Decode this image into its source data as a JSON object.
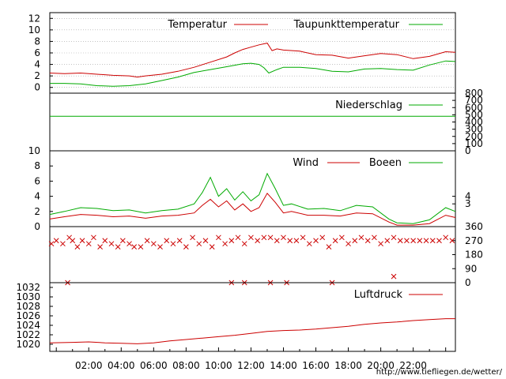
{
  "credit": "http://www.tiefliegen.de/wetter/",
  "colors": {
    "red": "#cc0000",
    "green": "#00aa00",
    "grid": "#a0a0a0"
  },
  "chart_data": [
    {
      "panel": "temperature",
      "type": "line",
      "x_labels": [
        "02:00",
        "04:00",
        "06:00",
        "08:00",
        "10:00",
        "12:00",
        "14:00",
        "16:00",
        "18:00",
        "20:00",
        "22:00"
      ],
      "x_range_hours": [
        -0.4,
        24.6
      ],
      "ylim": [
        -1,
        13
      ],
      "yticks": [
        0,
        2,
        4,
        6,
        8,
        10,
        12
      ],
      "grid": true,
      "legend_position": "top-right",
      "series": [
        {
          "name": "Temperatur",
          "color": "#cc0000",
          "x": [
            -0.4,
            0.5,
            1.5,
            2.5,
            3.5,
            4.5,
            5.0,
            5.5,
            6.5,
            7.5,
            8.5,
            9.5,
            10.5,
            11.0,
            11.5,
            12.0,
            12.5,
            13.0,
            13.3,
            13.6,
            14.0,
            15.0,
            16.0,
            17.0,
            18.0,
            19.0,
            20.0,
            21.0,
            22.0,
            23.0,
            24.0,
            24.6
          ],
          "y": [
            2.5,
            2.4,
            2.5,
            2.3,
            2.1,
            2.0,
            1.8,
            2.0,
            2.3,
            2.8,
            3.5,
            4.4,
            5.3,
            6.0,
            6.6,
            7.0,
            7.4,
            7.7,
            6.4,
            6.7,
            6.5,
            6.3,
            5.7,
            5.6,
            5.1,
            5.5,
            5.9,
            5.7,
            5.0,
            5.4,
            6.2,
            6.1
          ]
        },
        {
          "name": "Taupunkttemperatur",
          "color": "#00aa00",
          "x": [
            -0.4,
            0.5,
            1.5,
            2.5,
            3.5,
            4.5,
            5.5,
            6.5,
            7.5,
            8.5,
            9.5,
            10.5,
            11.5,
            12.0,
            12.5,
            12.8,
            13.1,
            13.6,
            14.0,
            15.0,
            16.0,
            17.0,
            18.0,
            19.0,
            20.0,
            21.0,
            22.0,
            23.0,
            24.0,
            24.6
          ],
          "y": [
            0.7,
            0.7,
            0.6,
            0.3,
            0.2,
            0.3,
            0.6,
            1.2,
            1.8,
            2.6,
            3.1,
            3.6,
            4.1,
            4.2,
            4.0,
            3.4,
            2.5,
            3.1,
            3.5,
            3.5,
            3.3,
            2.8,
            2.7,
            3.2,
            3.3,
            3.1,
            3.0,
            3.9,
            4.6,
            4.5
          ]
        }
      ]
    },
    {
      "panel": "precipitation",
      "type": "line",
      "ylim": [
        0,
        800
      ],
      "yticks": [
        0,
        100,
        200,
        300,
        400,
        500,
        600,
        700,
        800
      ],
      "series": [
        {
          "name": "Niederschlag",
          "color": "#00aa00",
          "x": [
            -0.4,
            24.6
          ],
          "y": [
            480,
            480
          ]
        }
      ]
    },
    {
      "panel": "wind",
      "type": "line",
      "ylim": [
        0,
        10
      ],
      "yticks_left": [
        0,
        2,
        4,
        6,
        8,
        10
      ],
      "yticks_right": [
        3,
        4
      ],
      "series": [
        {
          "name": "Wind",
          "color": "#cc0000",
          "x": [
            -0.4,
            0.5,
            1.5,
            2.5,
            3.5,
            4.5,
            5.5,
            6.5,
            7.5,
            8.5,
            9.0,
            9.5,
            10.0,
            10.5,
            11.0,
            11.5,
            12.0,
            12.5,
            13.0,
            13.5,
            14.0,
            14.5,
            15.5,
            16.5,
            17.5,
            18.5,
            19.5,
            20.5,
            21.0,
            22.0,
            23.0,
            24.0,
            24.6
          ],
          "y": [
            1.0,
            1.3,
            1.6,
            1.5,
            1.3,
            1.4,
            1.1,
            1.4,
            1.5,
            1.8,
            2.8,
            3.6,
            2.6,
            3.4,
            2.2,
            3.0,
            2.0,
            2.5,
            4.4,
            3.2,
            1.8,
            2.0,
            1.5,
            1.5,
            1.4,
            1.8,
            1.7,
            0.6,
            0.2,
            0.2,
            0.4,
            1.5,
            1.2
          ]
        },
        {
          "name": "Boeen",
          "color": "#00aa00",
          "x": [
            -0.4,
            0.5,
            1.5,
            2.5,
            3.5,
            4.5,
            5.5,
            6.5,
            7.5,
            8.5,
            9.0,
            9.5,
            10.0,
            10.5,
            11.0,
            11.5,
            12.0,
            12.5,
            13.0,
            13.5,
            14.0,
            14.5,
            15.5,
            16.5,
            17.5,
            18.5,
            19.5,
            20.5,
            21.0,
            22.0,
            23.0,
            24.0,
            24.6
          ],
          "y": [
            1.6,
            2.0,
            2.5,
            2.4,
            2.1,
            2.2,
            1.8,
            2.1,
            2.3,
            3.0,
            4.5,
            6.5,
            4.0,
            5.0,
            3.5,
            4.6,
            3.4,
            4.2,
            7.0,
            5.0,
            2.8,
            3.0,
            2.3,
            2.4,
            2.1,
            2.8,
            2.6,
            1.0,
            0.5,
            0.4,
            0.9,
            2.5,
            2.0
          ]
        }
      ]
    },
    {
      "panel": "wind_direction",
      "type": "scatter",
      "ylim": [
        0,
        360
      ],
      "yticks": [
        0,
        90,
        180,
        270,
        360
      ],
      "marker": "x",
      "series": [
        {
          "name": "",
          "color": "#cc0000",
          "x": [
            -0.3,
            0.0,
            0.4,
            0.8,
            1.0,
            1.3,
            1.6,
            2.0,
            2.3,
            2.7,
            3.0,
            3.4,
            3.8,
            4.1,
            4.5,
            4.8,
            5.2,
            5.6,
            6.0,
            6.4,
            6.8,
            7.2,
            7.6,
            8.0,
            8.4,
            8.8,
            9.2,
            9.6,
            10.0,
            10.4,
            10.8,
            11.2,
            11.6,
            12.0,
            12.4,
            12.8,
            13.2,
            13.6,
            14.0,
            14.4,
            14.8,
            15.2,
            15.6,
            16.0,
            16.4,
            16.8,
            17.2,
            17.6,
            18.0,
            18.4,
            18.8,
            19.2,
            19.6,
            20.0,
            20.4,
            20.8,
            21.2,
            21.6,
            22.0,
            22.4,
            22.8,
            23.2,
            23.6,
            24.0,
            24.4,
            0.7,
            10.8,
            11.6,
            13.2,
            14.2,
            17.0,
            20.8
          ],
          "y": [
            250,
            270,
            250,
            290,
            270,
            230,
            270,
            250,
            290,
            230,
            270,
            250,
            230,
            270,
            250,
            230,
            230,
            270,
            250,
            230,
            270,
            250,
            270,
            230,
            290,
            250,
            270,
            230,
            290,
            250,
            270,
            290,
            250,
            290,
            270,
            290,
            290,
            270,
            290,
            270,
            270,
            290,
            250,
            270,
            290,
            230,
            270,
            290,
            250,
            270,
            290,
            270,
            290,
            250,
            270,
            290,
            270,
            270,
            270,
            270,
            270,
            270,
            270,
            290,
            270,
            0,
            0,
            0,
            0,
            0,
            0,
            40
          ]
        }
      ]
    },
    {
      "panel": "pressure",
      "type": "line",
      "ylim": [
        1018.5,
        1033
      ],
      "yticks": [
        1020,
        1022,
        1024,
        1026,
        1028,
        1030,
        1032
      ],
      "series": [
        {
          "name": "Luftdruck",
          "color": "#cc0000",
          "x": [
            -0.4,
            1.0,
            2.0,
            3.0,
            4.0,
            5.0,
            6.0,
            7.0,
            8.0,
            9.0,
            10.0,
            11.0,
            12.0,
            13.0,
            14.0,
            15.0,
            16.0,
            17.0,
            18.0,
            19.0,
            20.0,
            21.0,
            22.0,
            23.0,
            24.0,
            24.6
          ],
          "y": [
            1020.3,
            1020.4,
            1020.5,
            1020.3,
            1020.2,
            1020.1,
            1020.3,
            1020.7,
            1021.0,
            1021.3,
            1021.6,
            1021.9,
            1022.3,
            1022.7,
            1022.9,
            1023.0,
            1023.2,
            1023.5,
            1023.8,
            1024.2,
            1024.5,
            1024.7,
            1025.0,
            1025.2,
            1025.4,
            1025.4
          ]
        }
      ]
    }
  ]
}
